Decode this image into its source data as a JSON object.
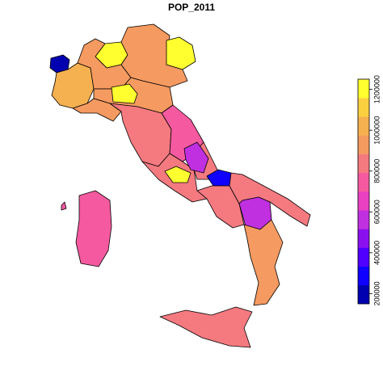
{
  "chart_data": {
    "type": "choropleth",
    "title": "POP_2011",
    "values": [
      160000,
      1050000,
      1200000,
      950000,
      920000,
      1200000,
      960000,
      1200000,
      900000,
      840000,
      780000,
      860000,
      1200000,
      820000,
      560000,
      300000,
      850000,
      800000,
      580000,
      920000,
      810000,
      760000
    ],
    "clim": [
      150000,
      1250000
    ],
    "cticks": [
      200000,
      400000,
      600000,
      800000,
      1000000,
      1200000
    ],
    "palette": [
      "#0000b0",
      "#1000ff",
      "#5000ff",
      "#8a10f0",
      "#c030e0",
      "#e840c0",
      "#f55aa0",
      "#f57a80",
      "#f59a60",
      "#f5b050",
      "#fbd040",
      "#ffff30"
    ]
  }
}
